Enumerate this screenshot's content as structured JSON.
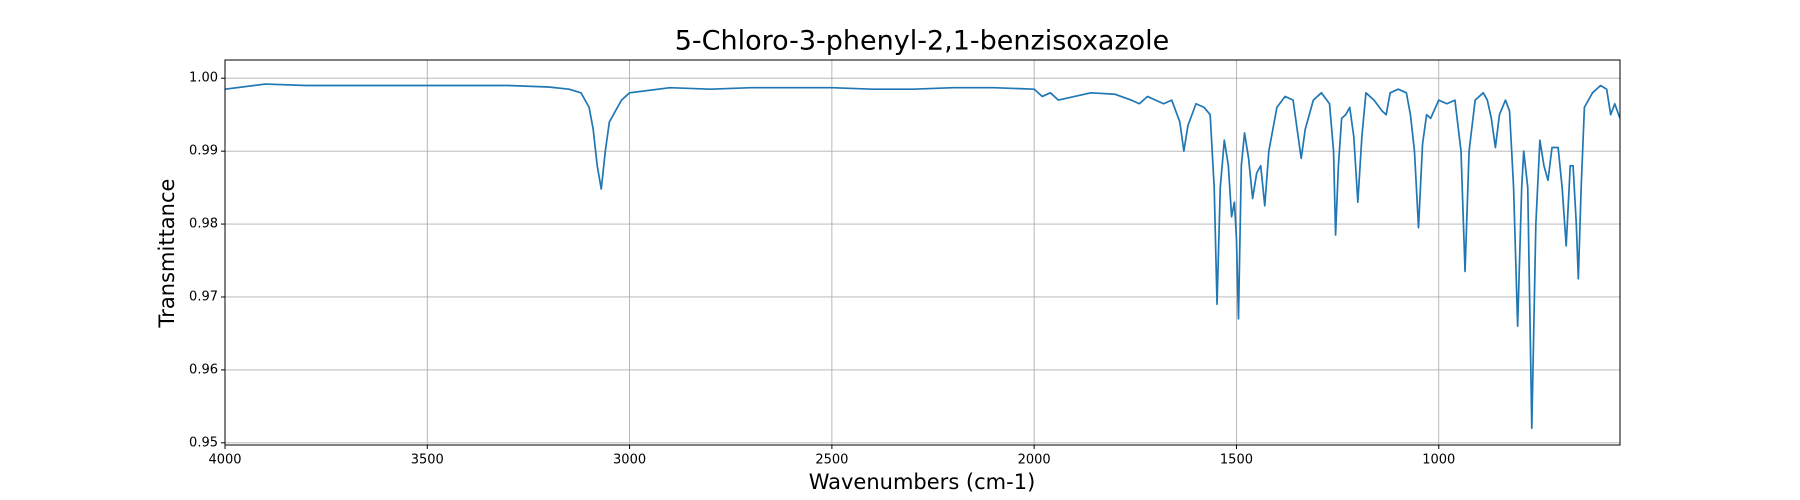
{
  "chart_data": {
    "type": "line",
    "title": "5-Chloro-3-phenyl-2,1-benzisoxazole",
    "xlabel": "Wavenumbers (cm-1)",
    "ylabel": "Transmittance",
    "xlim": [
      4000,
      552
    ],
    "ylim": [
      0.9497,
      1.0025
    ],
    "xticks": [
      4000,
      3500,
      3000,
      2500,
      2000,
      1500,
      1000
    ],
    "yticks": [
      0.95,
      0.96,
      0.97,
      0.98,
      0.99,
      {
        "value": 1,
        "label": "1.00"
      }
    ],
    "grid": true,
    "series": [
      {
        "color": "#1f77b4",
        "x": [
          4000,
          3900,
          3800,
          3700,
          3600,
          3500,
          3400,
          3300,
          3200,
          3150,
          3120,
          3100,
          3090,
          3080,
          3070,
          3060,
          3050,
          3040,
          3020,
          3000,
          2900,
          2800,
          2700,
          2600,
          2500,
          2400,
          2300,
          2200,
          2100,
          2000,
          1980,
          1960,
          1940,
          1900,
          1860,
          1800,
          1760,
          1740,
          1720,
          1700,
          1680,
          1660,
          1640,
          1630,
          1620,
          1600,
          1580,
          1565,
          1555,
          1548,
          1540,
          1530,
          1520,
          1512,
          1505,
          1500,
          1495,
          1488,
          1480,
          1470,
          1460,
          1450,
          1440,
          1430,
          1420,
          1400,
          1380,
          1360,
          1350,
          1340,
          1330,
          1310,
          1290,
          1270,
          1260,
          1255,
          1248,
          1240,
          1230,
          1220,
          1210,
          1200,
          1190,
          1180,
          1160,
          1140,
          1130,
          1120,
          1100,
          1080,
          1070,
          1060,
          1050,
          1040,
          1030,
          1020,
          1000,
          980,
          960,
          945,
          935,
          925,
          910,
          890,
          880,
          870,
          860,
          850,
          835,
          825,
          815,
          805,
          795,
          790,
          780,
          770,
          760,
          750,
          740,
          730,
          720,
          705,
          695,
          685,
          675,
          668,
          660,
          655,
          648,
          640,
          620,
          600,
          585,
          575,
          565,
          552
        ],
        "values": [
          0.9985,
          0.9992,
          0.999,
          0.999,
          0.999,
          0.999,
          0.999,
          0.999,
          0.9988,
          0.9985,
          0.998,
          0.996,
          0.993,
          0.988,
          0.9848,
          0.99,
          0.994,
          0.995,
          0.997,
          0.998,
          0.9987,
          0.9985,
          0.9987,
          0.9987,
          0.9987,
          0.9985,
          0.9985,
          0.9987,
          0.9987,
          0.9985,
          0.9975,
          0.998,
          0.997,
          0.9975,
          0.998,
          0.9978,
          0.997,
          0.9965,
          0.9975,
          0.997,
          0.9965,
          0.997,
          0.994,
          0.99,
          0.9935,
          0.9965,
          0.996,
          0.995,
          0.985,
          0.969,
          0.985,
          0.9915,
          0.988,
          0.981,
          0.983,
          0.978,
          0.967,
          0.988,
          0.9925,
          0.989,
          0.9835,
          0.987,
          0.988,
          0.9825,
          0.99,
          0.996,
          0.9975,
          0.997,
          0.993,
          0.989,
          0.993,
          0.997,
          0.998,
          0.9965,
          0.99,
          0.9785,
          0.988,
          0.9945,
          0.995,
          0.996,
          0.992,
          0.983,
          0.992,
          0.998,
          0.997,
          0.9955,
          0.995,
          0.998,
          0.9985,
          0.998,
          0.995,
          0.99,
          0.9795,
          0.991,
          0.995,
          0.9945,
          0.997,
          0.9965,
          0.997,
          0.99,
          0.9735,
          0.99,
          0.997,
          0.998,
          0.997,
          0.9945,
          0.9905,
          0.995,
          0.997,
          0.9955,
          0.985,
          0.966,
          0.985,
          0.99,
          0.985,
          0.952,
          0.98,
          0.9915,
          0.988,
          0.986,
          0.9905,
          0.9905,
          0.985,
          0.977,
          0.988,
          0.988,
          0.98,
          0.9725,
          0.985,
          0.996,
          0.998,
          0.999,
          0.9985,
          0.995,
          0.9965,
          0.9945
        ]
      }
    ]
  }
}
